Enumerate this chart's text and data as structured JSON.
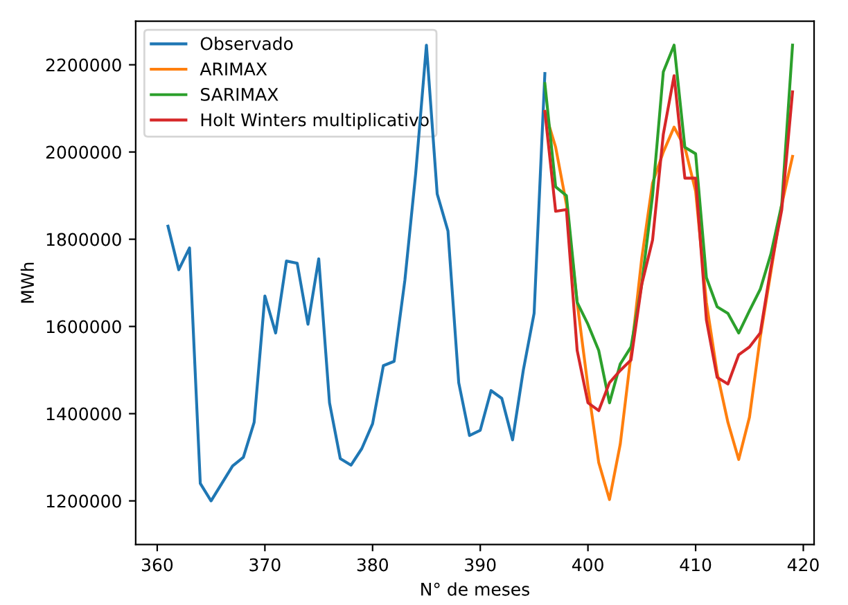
{
  "chart_data": {
    "type": "line",
    "xlabel": "N° de meses",
    "ylabel": "MWh",
    "xlim": [
      358,
      421
    ],
    "xticks": [
      360,
      370,
      380,
      390,
      400,
      410,
      420
    ],
    "ylim": [
      1100000,
      2300000
    ],
    "yticks": [
      1200000,
      1400000,
      1600000,
      1800000,
      2000000,
      2200000
    ],
    "legend": "top left",
    "grid": false,
    "series": [
      {
        "name": "Observado",
        "color": "#1f77b4",
        "x": [
          361,
          362,
          363,
          364,
          365,
          366,
          367,
          368,
          369,
          370,
          371,
          372,
          373,
          374,
          375,
          376,
          377,
          378,
          379,
          380,
          381,
          382,
          383,
          384,
          385,
          386,
          387,
          388,
          389,
          390,
          391,
          392,
          393,
          394,
          395,
          396
        ],
        "values": [
          1830000,
          1730000,
          1780000,
          1240000,
          1200000,
          1240000,
          1280000,
          1300000,
          1380000,
          1670000,
          1585000,
          1750000,
          1745000,
          1605000,
          1755000,
          1425000,
          1297000,
          1282000,
          1320000,
          1377000,
          1510000,
          1520000,
          1706000,
          1950000,
          2245000,
          1904000,
          1819000,
          1471000,
          1350000,
          1362000,
          1453000,
          1435000,
          1340000,
          1500000,
          1630000,
          2180000
        ]
      },
      {
        "name": "ARIMAX",
        "color": "#ff7f0e",
        "x": [
          396,
          397,
          398,
          399,
          400,
          401,
          402,
          403,
          404,
          405,
          406,
          407,
          408,
          409,
          410,
          411,
          412,
          413,
          414,
          415,
          416,
          417,
          418,
          419
        ],
        "values": [
          2093000,
          2011000,
          1880000,
          1655000,
          1462000,
          1288000,
          1203000,
          1330000,
          1535000,
          1757000,
          1929000,
          2000000,
          2057000,
          2011000,
          1910000,
          1655000,
          1493000,
          1380000,
          1295000,
          1392000,
          1575000,
          1727000,
          1880000,
          1990000
        ]
      },
      {
        "name": "SARIMAX",
        "color": "#2ca02c",
        "x": [
          396,
          397,
          398,
          399,
          400,
          401,
          402,
          403,
          404,
          405,
          406,
          407,
          408,
          409,
          410,
          411,
          412,
          413,
          414,
          415,
          416,
          417,
          418,
          419
        ],
        "values": [
          2157000,
          1920000,
          1900000,
          1655000,
          1605000,
          1545000,
          1425000,
          1514000,
          1553000,
          1697000,
          1900000,
          2184000,
          2245000,
          2011000,
          1996000,
          1712000,
          1645000,
          1630000,
          1585000,
          1636000,
          1685000,
          1767000,
          1880000,
          2245000
        ]
      },
      {
        "name": "Holt Winters multiplicativo",
        "color": "#d62728",
        "x": [
          396,
          397,
          398,
          399,
          400,
          401,
          402,
          403,
          404,
          405,
          406,
          407,
          408,
          409,
          410,
          411,
          412,
          413,
          414,
          415,
          416,
          417,
          418,
          419
        ],
        "values": [
          2093000,
          1864000,
          1868000,
          1545000,
          1425000,
          1407000,
          1471000,
          1499000,
          1523000,
          1697000,
          1798000,
          2041000,
          2175000,
          1940000,
          1940000,
          1615000,
          1483000,
          1468000,
          1535000,
          1553000,
          1585000,
          1737000,
          1868000,
          2138000
        ]
      }
    ]
  }
}
